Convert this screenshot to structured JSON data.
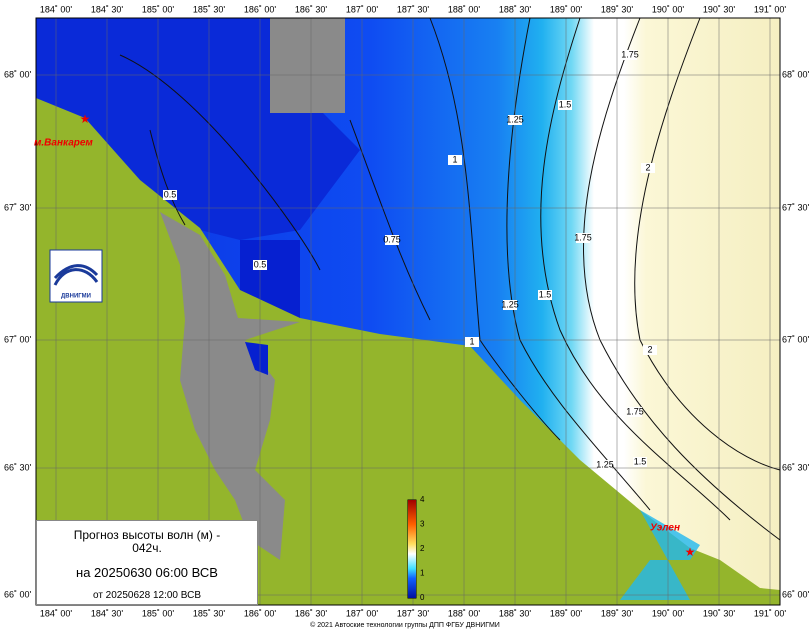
{
  "map": {
    "top_lon_labels": [
      "184˚ 00'",
      "184˚ 30'",
      "185˚ 00'",
      "185˚ 30'",
      "186˚ 00'",
      "186˚ 30'",
      "187˚ 00'",
      "187˚ 30'",
      "188˚ 00'",
      "188˚ 30'",
      "189˚ 00'",
      "189˚ 30'",
      "190˚ 00'",
      "190˚ 30'",
      "191˚ 00'"
    ],
    "bottom_lon_labels": [
      "184˚ 00'",
      "184˚ 30'",
      "185˚ 00'",
      "185˚ 30'",
      "186˚ 00'",
      "186˚ 30'",
      "187˚ 00'",
      "187˚ 30'",
      "188˚ 00'",
      "188˚ 30'",
      "189˚ 00'",
      "189˚ 30'",
      "190˚ 00'",
      "190˚ 30'",
      "191˚ 00'"
    ],
    "left_lat_labels": [
      "68˚ 00'",
      "67˚ 30'",
      "67˚ 00'",
      "66˚ 30'",
      "66˚ 00'"
    ],
    "right_lat_labels": [
      "68˚ 00'",
      "67˚ 30'",
      "67˚ 00'",
      "66˚ 30'",
      "66˚ 00'"
    ],
    "contour_labels": [
      "0.5",
      "0.5",
      "0.75",
      "1",
      "1",
      "1.25",
      "1.25",
      "1.25",
      "1.5",
      "1.5",
      "1.5",
      "1.75",
      "1.75",
      "1.75",
      "2",
      "2"
    ],
    "places": [
      "м.Ванкарем",
      "Уэлен"
    ],
    "logo": "ДВНИГМИ"
  },
  "legend": {
    "title": "Прогноз высоты волн (м) - 042ч.",
    "valid": "на 20250630 06:00 ВСВ",
    "issued": "от 20250628 12:00 ВСВ"
  },
  "colorbar": {
    "labels": [
      "0",
      "1",
      "2",
      "3",
      "4"
    ]
  },
  "footer": "© 2021 Автоские технологии группы ДПП ФГБУ ДВНИГМИ"
}
